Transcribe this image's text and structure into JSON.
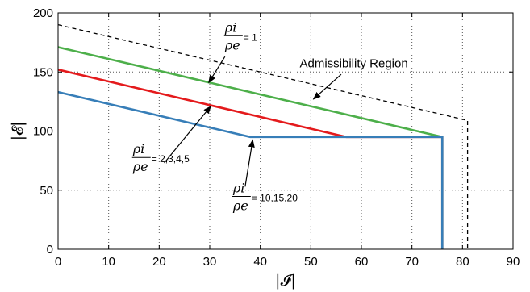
{
  "chart_data": {
    "type": "line",
    "xlabel": "|𝓘|",
    "ylabel": "|𝓔|",
    "xlim": [
      0,
      90
    ],
    "ylim": [
      0,
      200
    ],
    "xticks": [
      0,
      10,
      20,
      30,
      40,
      50,
      60,
      70,
      80,
      90
    ],
    "yticks": [
      0,
      50,
      100,
      150,
      200
    ],
    "grid": true,
    "series": [
      {
        "color": "#000000",
        "dash": true,
        "x": [
          0,
          81,
          81
        ],
        "y": [
          190,
          109,
          0
        ]
      },
      {
        "color": "#4daf4a",
        "x": [
          0,
          76,
          76
        ],
        "y": [
          171,
          95,
          0
        ]
      },
      {
        "color": "#e41a1c",
        "x": [
          0,
          57,
          76,
          76
        ],
        "y": [
          152,
          95,
          95,
          0
        ]
      },
      {
        "color": "#377eb8",
        "x": [
          0,
          38,
          76,
          76
        ],
        "y": [
          133,
          95,
          95,
          0
        ]
      }
    ],
    "annotations": [
      {
        "id": "ratio1",
        "numerator": "ρi",
        "denominator": "ρe",
        "value": "= 1",
        "text_x": 33,
        "text_y": 180,
        "arrow_from": [
          33,
          163
        ],
        "arrow_to": [
          29.8,
          141
        ]
      },
      {
        "id": "admissibility",
        "text": "Admissibility Region",
        "text_x": 58.5,
        "text_y": 154,
        "arrow_from": [
          56,
          148
        ],
        "arrow_to": [
          50.5,
          127
        ]
      },
      {
        "id": "ratio2345",
        "numerator": "ρi",
        "denominator": "ρe",
        "value": "= 2,3,4,5",
        "text_x": 14.8,
        "text_y": 77,
        "arrow_from": [
          21,
          73
        ],
        "arrow_to": [
          30.2,
          121
        ]
      },
      {
        "id": "ratio101520",
        "numerator": "ρi",
        "denominator": "ρe",
        "value": "= 10,15,20",
        "text_x": 34.6,
        "text_y": 44,
        "arrow_from": [
          37,
          53
        ],
        "arrow_to": [
          38.5,
          92.5
        ]
      }
    ]
  }
}
